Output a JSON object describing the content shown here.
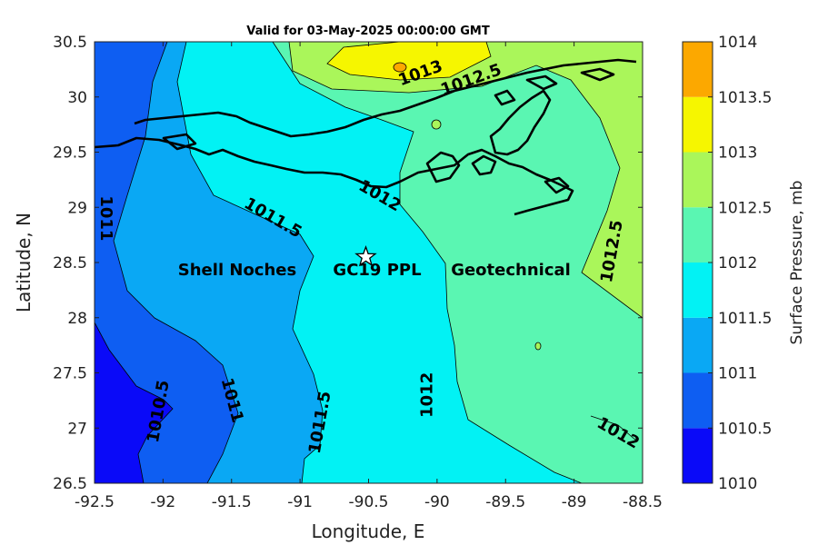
{
  "map": {
    "title": "Valid for 03-May-2025 00:00:00 GMT",
    "xlabel": "Longitude, E",
    "ylabel": "Latitude, N",
    "xlim": [
      -92.5,
      -88.5
    ],
    "ylim": [
      26.5,
      30.5
    ],
    "x_ticks": [
      "-92.5",
      "-92",
      "-91.5",
      "-91",
      "-90.5",
      "-90",
      "-89.5",
      "-89",
      "-88.5"
    ],
    "y_ticks": [
      "26.5",
      "27",
      "27.5",
      "28",
      "28.5",
      "29",
      "29.5",
      "30",
      "30.5"
    ],
    "site_marker": {
      "name": "Shell Noches GC19 PPL Geotechnical",
      "lon": -90.52,
      "lat": 28.55,
      "symbol": "star"
    },
    "site_label_parts": [
      "Shell Noches",
      "GC19 PPL",
      "Geotechnical"
    ],
    "contour_labels": [
      {
        "text": "1011",
        "lon": -92.42,
        "lat": 28.9,
        "rotation": 90
      },
      {
        "text": "1011.5",
        "lon": -91.2,
        "lat": 28.9,
        "rotation": 30
      },
      {
        "text": "1012",
        "lon": -90.42,
        "lat": 29.1,
        "rotation": 30
      },
      {
        "text": "1013",
        "lon": -90.12,
        "lat": 30.21,
        "rotation": -20
      },
      {
        "text": "1012.5",
        "lon": -89.75,
        "lat": 30.15,
        "rotation": -20
      },
      {
        "text": "1012.5",
        "lon": -88.72,
        "lat": 28.6,
        "rotation": -80
      },
      {
        "text": "1010.5",
        "lon": -92.03,
        "lat": 27.15,
        "rotation": -80
      },
      {
        "text": "1011",
        "lon": -91.5,
        "lat": 27.25,
        "rotation": 75
      },
      {
        "text": "1011.5",
        "lon": -90.85,
        "lat": 27.05,
        "rotation": -80
      },
      {
        "text": "1012",
        "lon": -90.07,
        "lat": 27.3,
        "rotation": -90
      },
      {
        "text": "1012",
        "lon": -88.68,
        "lat": 26.95,
        "rotation": 30
      }
    ]
  },
  "colorbar": {
    "label": "Surface Pressure, mb",
    "ticks": [
      "1010",
      "1010.5",
      "1011",
      "1011.5",
      "1012",
      "1012.5",
      "1013",
      "1013.5",
      "1014"
    ],
    "colors": [
      "#0a0af8",
      "#0e5ef2",
      "#0aa8f4",
      "#02f2f4",
      "#5af6b2",
      "#aaf65a",
      "#f6f600",
      "#fca800",
      "#fc5800"
    ]
  },
  "chart_data": {
    "type": "heatmap",
    "title": "Valid for 03-May-2025 00:00:00 GMT",
    "xlabel": "Longitude, E",
    "ylabel": "Latitude, N",
    "xlim": [
      -92.5,
      -88.5
    ],
    "ylim": [
      26.5,
      30.5
    ],
    "colorbar_label": "Surface Pressure, mb",
    "colorbar_range": [
      1010,
      1014
    ],
    "contour_levels": [
      1010.5,
      1011,
      1011.5,
      1012,
      1012.5,
      1013
    ],
    "marker": {
      "lon": -90.52,
      "lat": 28.55
    }
  }
}
